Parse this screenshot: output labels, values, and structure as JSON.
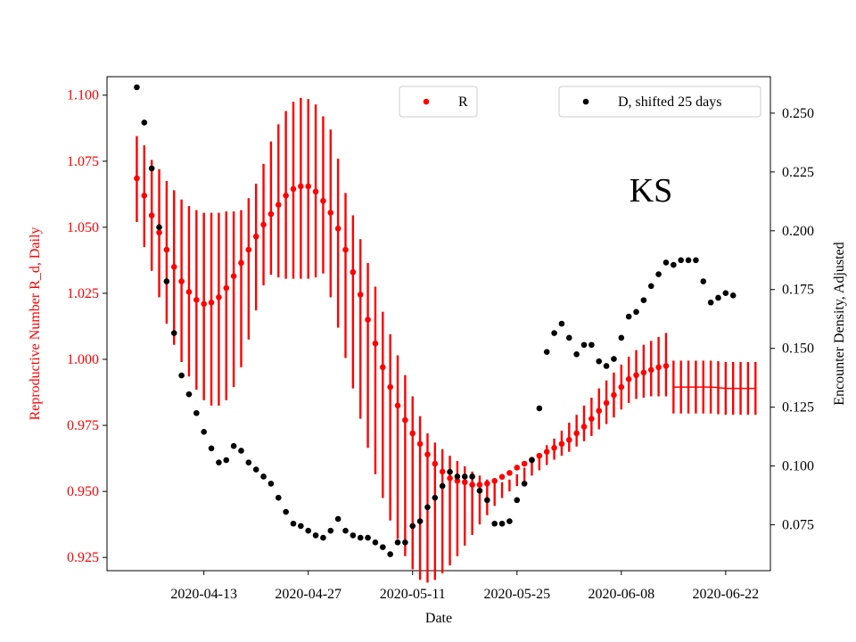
{
  "chart_data": {
    "type": "scatter",
    "annotation": "KS",
    "xlabel": "Date",
    "x_tick_labels": [
      "2020-04-13",
      "2020-04-27",
      "2020-05-11",
      "2020-05-25",
      "2020-06-08",
      "2020-06-22"
    ],
    "x_tick_days": [
      13,
      27,
      41,
      55,
      69,
      83
    ],
    "x_range_days": [
      0,
      89
    ],
    "left_axis": {
      "label": "Reproductive Number R_d, Daily",
      "color": "#ff0000",
      "ylim": [
        0.92,
        1.107
      ],
      "ticks": [
        0.925,
        0.95,
        0.975,
        1.0,
        1.025,
        1.05,
        1.075,
        1.1
      ],
      "tick_labels": [
        "0.925",
        "0.950",
        "0.975",
        "1.000",
        "1.025",
        "1.050",
        "1.075",
        "1.100"
      ]
    },
    "right_axis": {
      "label": "Encounter Density, Adjusted",
      "color": "#000000",
      "ylim": [
        0.0555,
        0.2655
      ],
      "ticks": [
        0.075,
        0.1,
        0.125,
        0.15,
        0.175,
        0.2,
        0.225,
        0.25
      ],
      "tick_labels": [
        "0.075",
        "0.100",
        "0.125",
        "0.150",
        "0.175",
        "0.200",
        "0.225",
        "0.250"
      ]
    },
    "legend": {
      "r_label": "R",
      "d_label": "D, shifted 25 days"
    },
    "series": [
      {
        "name": "R",
        "axis": "left",
        "color": "#ff0000",
        "start_day": 4,
        "values": [
          1.0685,
          1.062,
          1.0545,
          1.048,
          1.0415,
          1.035,
          1.0295,
          1.0255,
          1.0225,
          1.021,
          1.0215,
          1.0235,
          1.027,
          1.0315,
          1.0365,
          1.0415,
          1.0465,
          1.051,
          1.055,
          1.0585,
          1.062,
          1.0645,
          1.0655,
          1.0655,
          1.0635,
          1.06,
          1.0555,
          1.0495,
          1.0415,
          1.033,
          1.0245,
          1.015,
          1.006,
          0.997,
          0.9895,
          0.9825,
          0.977,
          0.972,
          0.968,
          0.964,
          0.9605,
          0.9575,
          0.955,
          0.954,
          0.9535,
          0.9525,
          0.9525,
          0.953,
          0.954,
          0.9555,
          0.957,
          0.959,
          0.9605,
          0.962,
          0.9635,
          0.965,
          0.9665,
          0.968,
          0.9695,
          0.972,
          0.9745,
          0.9775,
          0.9805,
          0.9835,
          0.9865,
          0.9895,
          0.9925,
          0.994,
          0.995,
          0.996,
          0.997,
          0.9975
        ],
        "lower": [
          1.052,
          1.0425,
          1.0335,
          1.0235,
          1.0135,
          1.0055,
          0.999,
          0.9935,
          0.9885,
          0.9845,
          0.9825,
          0.9825,
          0.9845,
          0.9895,
          0.997,
          1.0075,
          1.0185,
          1.028,
          1.032,
          1.031,
          1.0305,
          1.0305,
          1.0305,
          1.0305,
          1.031,
          1.0325,
          1.0235,
          1.012,
          1.0005,
          0.989,
          0.9775,
          0.9665,
          0.9565,
          0.9475,
          0.939,
          0.932,
          0.9255,
          0.9205,
          0.9165,
          0.9155,
          0.9165,
          0.919,
          0.922,
          0.9255,
          0.9295,
          0.9335,
          0.9375,
          0.941,
          0.9445,
          0.9475,
          0.95,
          0.952,
          0.954,
          0.956,
          0.958,
          0.96,
          0.962,
          0.9635,
          0.965,
          0.967,
          0.969,
          0.971,
          0.9735,
          0.9755,
          0.978,
          0.981,
          0.9835,
          0.985,
          0.9855,
          0.986,
          0.986,
          0.986
        ],
        "upper": [
          1.0845,
          1.081,
          1.0755,
          1.072,
          1.0675,
          1.064,
          1.0605,
          1.058,
          1.0565,
          1.0555,
          1.0555,
          1.0555,
          1.056,
          1.056,
          1.0565,
          1.061,
          1.0665,
          1.074,
          1.0825,
          1.089,
          1.094,
          1.0975,
          1.099,
          1.0985,
          1.0965,
          1.092,
          1.087,
          1.076,
          1.063,
          1.0545,
          1.0455,
          1.0365,
          1.0275,
          1.018,
          1.0095,
          1.0015,
          0.994,
          0.986,
          0.9785,
          0.972,
          0.9685,
          0.966,
          0.9635,
          0.9615,
          0.9595,
          0.9575,
          0.956,
          0.9545,
          0.9535,
          0.9535,
          0.9545,
          0.9565,
          0.959,
          0.9615,
          0.9645,
          0.9675,
          0.97,
          0.973,
          0.976,
          0.979,
          0.9825,
          0.9855,
          0.989,
          0.992,
          0.995,
          0.998,
          1.001,
          1.0035,
          1.0055,
          1.007,
          1.0085,
          1.01
        ]
      },
      {
        "name": "R (flat extension)",
        "axis": "left",
        "color": "#ff0000",
        "start_day": 76,
        "values": [
          0.9895,
          0.9895,
          0.9895,
          0.9895,
          0.9895,
          0.9895,
          0.9893,
          0.989,
          0.989,
          0.989,
          0.989,
          0.989
        ],
        "lower": [
          0.9795,
          0.9795,
          0.9795,
          0.9795,
          0.9795,
          0.9795,
          0.9792,
          0.979,
          0.979,
          0.979,
          0.979,
          0.979
        ],
        "upper": [
          0.9995,
          0.9995,
          0.9995,
          0.9995,
          0.9995,
          0.9995,
          0.9993,
          0.999,
          0.999,
          0.999,
          0.999,
          0.999
        ]
      },
      {
        "name": "D, shifted 25 days",
        "axis": "right",
        "color": "#000000",
        "start_day": 4,
        "values": [
          0.261,
          0.246,
          0.2265,
          0.2015,
          0.1785,
          0.1565,
          0.1385,
          0.1305,
          0.1225,
          0.1145,
          0.1075,
          0.1015,
          0.1025,
          0.1085,
          0.1065,
          0.1015,
          0.0985,
          0.0955,
          0.0925,
          0.0865,
          0.0805,
          0.0755,
          0.0745,
          0.0725,
          0.0705,
          0.0695,
          0.0725,
          0.0775,
          0.0725,
          0.0705,
          0.0695,
          0.0695,
          0.0675,
          0.0655,
          0.0625,
          0.0675,
          0.0675,
          0.0745,
          0.0765,
          0.0825,
          0.0865,
          0.0915,
          0.0975,
          0.0955,
          0.0955,
          0.0955,
          0.0895,
          0.0855,
          0.0755,
          0.0755,
          0.0765,
          0.0855,
          0.0925,
          0.1025,
          0.1245,
          0.1485,
          0.1565,
          0.1605,
          0.1545,
          0.1475,
          0.1515,
          0.1515,
          0.1445,
          0.1425,
          0.1455,
          0.1545,
          0.1635,
          0.1655,
          0.1705,
          0.1765,
          0.1815,
          0.1865,
          0.1855,
          0.1875,
          0.1875,
          0.1875,
          0.1785,
          0.1695,
          0.1715,
          0.1735,
          0.1725
        ]
      }
    ]
  }
}
